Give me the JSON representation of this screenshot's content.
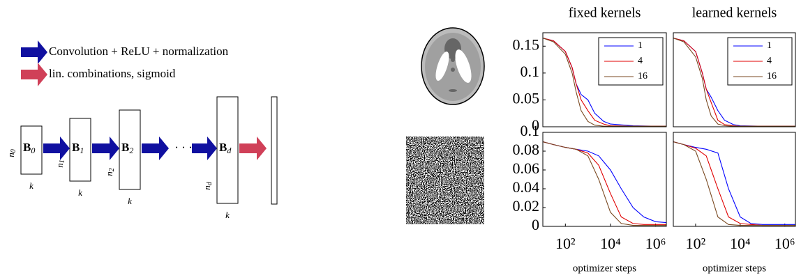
{
  "diagram": {
    "legend": [
      "Convolution + ReLU + normalization",
      "lin. combinations, sigmoid"
    ],
    "blocks": [
      {
        "label": "B",
        "sub": "0",
        "n": "n",
        "n_sub": "0",
        "k": "k"
      },
      {
        "label": "B",
        "sub": "1",
        "n": "n",
        "n_sub": "1",
        "k": "k"
      },
      {
        "label": "B",
        "sub": "2",
        "n": "n",
        "n_sub": "2",
        "k": "k"
      },
      {
        "label": "B",
        "sub": "d",
        "n": "n",
        "n_sub": "d",
        "k": "k"
      }
    ],
    "ellipsis": "· · ·"
  },
  "chart_data": [
    {
      "type": "line",
      "title": "fixed kernels",
      "log_x": true,
      "legend": "upper right",
      "x": [
        10,
        30,
        100,
        200,
        300,
        500,
        1000,
        2000,
        5000,
        10000,
        100000,
        1000000,
        3000000
      ],
      "xlim": [
        10,
        3000000
      ],
      "ylim": [
        0,
        0.175
      ],
      "yticks": [
        0,
        0.05,
        0.1,
        0.15
      ],
      "series": [
        {
          "name": "1",
          "color": "#0000ff",
          "values": [
            0.165,
            0.16,
            0.14,
            0.11,
            0.08,
            0.06,
            0.05,
            0.025,
            0.01,
            0.005,
            0.002,
            0.001,
            0.001
          ]
        },
        {
          "name": "4",
          "color": "#e00000",
          "values": [
            0.165,
            0.16,
            0.14,
            0.11,
            0.08,
            0.05,
            0.03,
            0.012,
            0.005,
            0.002,
            0.001,
            0.001,
            0.001
          ]
        },
        {
          "name": "16",
          "color": "#7a4a22",
          "values": [
            0.165,
            0.158,
            0.135,
            0.1,
            0.065,
            0.03,
            0.01,
            0.003,
            0.001,
            0.001,
            0.001,
            0.001,
            0.001
          ]
        }
      ]
    },
    {
      "type": "line",
      "title": "learned kernels",
      "log_x": true,
      "legend": "upper right",
      "x": [
        10,
        30,
        100,
        200,
        300,
        500,
        1000,
        2000,
        5000,
        10000,
        100000,
        1000000,
        3000000
      ],
      "xlim": [
        10,
        3000000
      ],
      "ylim": [
        0,
        0.175
      ],
      "series": [
        {
          "name": "1",
          "color": "#0000ff",
          "values": [
            0.165,
            0.16,
            0.14,
            0.1,
            0.07,
            0.055,
            0.03,
            0.012,
            0.004,
            0.002,
            0.001,
            0.001,
            0.001
          ]
        },
        {
          "name": "4",
          "color": "#e00000",
          "values": [
            0.165,
            0.16,
            0.14,
            0.1,
            0.07,
            0.045,
            0.012,
            0.004,
            0.002,
            0.001,
            0.001,
            0.001,
            0.001
          ]
        },
        {
          "name": "16",
          "color": "#7a4a22",
          "values": [
            0.165,
            0.158,
            0.13,
            0.09,
            0.05,
            0.02,
            0.005,
            0.002,
            0.001,
            0.001,
            0.001,
            0.001,
            0.001
          ]
        }
      ]
    },
    {
      "type": "line",
      "xlabel": "optimizer steps",
      "log_x": true,
      "x": [
        10,
        30,
        100,
        300,
        1000,
        3000,
        10000,
        30000,
        100000,
        300000,
        1000000,
        3000000
      ],
      "xlim": [
        10,
        3000000
      ],
      "ylim": [
        0,
        0.1
      ],
      "xticks": [
        {
          "value": 100,
          "label": "10²"
        },
        {
          "value": 10000,
          "label": "10⁴"
        },
        {
          "value": 1000000,
          "label": "10⁶"
        }
      ],
      "yticks": [
        0,
        0.02,
        0.04,
        0.06,
        0.08,
        0.1
      ],
      "series": [
        {
          "color": "#0000ff",
          "values": [
            0.09,
            0.087,
            0.084,
            0.082,
            0.08,
            0.075,
            0.06,
            0.04,
            0.02,
            0.01,
            0.005,
            0.004
          ]
        },
        {
          "color": "#e00000",
          "values": [
            0.09,
            0.087,
            0.084,
            0.082,
            0.078,
            0.065,
            0.035,
            0.01,
            0.003,
            0.002,
            0.002,
            0.002
          ]
        },
        {
          "color": "#7a4a22",
          "values": [
            0.09,
            0.087,
            0.084,
            0.082,
            0.075,
            0.05,
            0.015,
            0.003,
            0.001,
            0.001,
            0.001,
            0.001
          ]
        }
      ]
    },
    {
      "type": "line",
      "xlabel": "optimizer steps",
      "log_x": true,
      "x": [
        10,
        30,
        100,
        300,
        1000,
        3000,
        10000,
        30000,
        100000,
        300000,
        1000000,
        3000000
      ],
      "xlim": [
        10,
        3000000
      ],
      "ylim": [
        0,
        0.1
      ],
      "xticks": [
        {
          "value": 100,
          "label": "10²"
        },
        {
          "value": 10000,
          "label": "10⁴"
        },
        {
          "value": 1000000,
          "label": "10⁶"
        }
      ],
      "series": [
        {
          "color": "#0000ff",
          "values": [
            0.09,
            0.087,
            0.084,
            0.082,
            0.078,
            0.04,
            0.01,
            0.003,
            0.002,
            0.002,
            0.002,
            0.002
          ]
        },
        {
          "color": "#e00000",
          "values": [
            0.09,
            0.087,
            0.083,
            0.075,
            0.04,
            0.01,
            0.003,
            0.002,
            0.001,
            0.001,
            0.001,
            0.001
          ]
        },
        {
          "color": "#7a4a22",
          "values": [
            0.09,
            0.087,
            0.08,
            0.05,
            0.01,
            0.002,
            0.001,
            0.001,
            0.001,
            0.001,
            0.001,
            0.001
          ]
        }
      ]
    }
  ]
}
